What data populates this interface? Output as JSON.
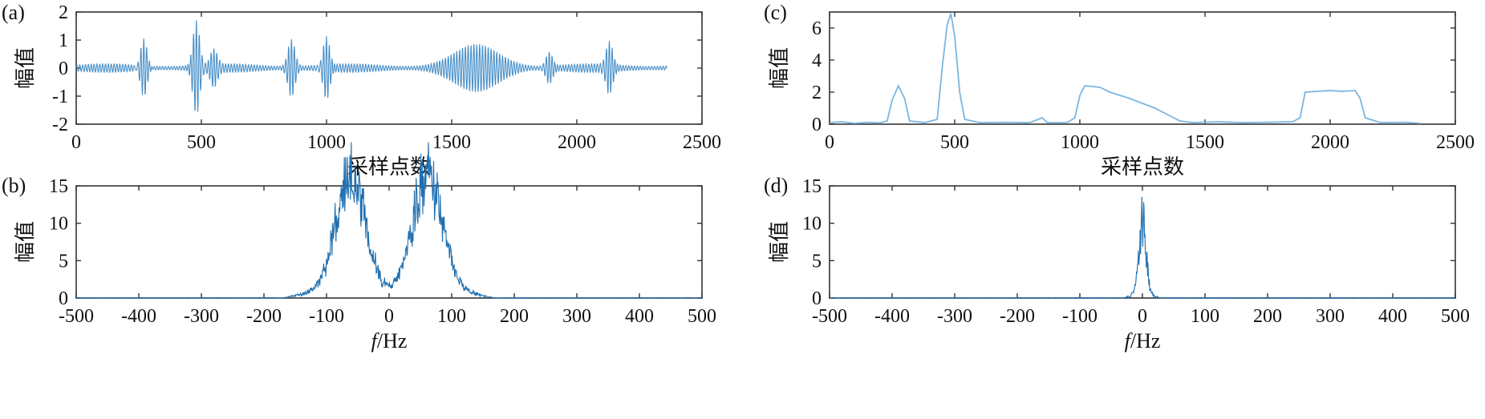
{
  "chart_data": [
    {
      "panel": "(a)",
      "type": "line",
      "ylabel": "幅值",
      "xlabel": "采样点数",
      "xlim": [
        0,
        2500
      ],
      "ylim": [
        -2,
        2
      ],
      "xticks": [
        "0",
        "500",
        "1000",
        "1500",
        "2000",
        "2500"
      ],
      "yticks": [
        "-2",
        "-1",
        "0",
        "1",
        "2"
      ],
      "color": "#4a90c8",
      "series": [
        {
          "description": "oscillating signal, background amplitude ~0.15, transient bursts",
          "baseline_amplitude": 0.15,
          "signal_end": 2360,
          "bursts": [
            {
              "x": 270,
              "peak": 1.2,
              "trough": -1.05
            },
            {
              "x": 480,
              "peak": 1.7,
              "trough": -1.7
            },
            {
              "x": 550,
              "peak": 0.6,
              "trough": -0.6
            },
            {
              "x": 860,
              "peak": 1.15,
              "trough": -0.85
            },
            {
              "x": 1000,
              "peak": 1.2,
              "trough": -1.15
            },
            {
              "x": 1600,
              "peak": 0.85,
              "trough": -0.75
            },
            {
              "x": 1890,
              "peak": 0.55,
              "trough": -0.55
            },
            {
              "x": 2130,
              "peak": 0.9,
              "trough": -0.95
            }
          ]
        }
      ]
    },
    {
      "panel": "(b)",
      "type": "line",
      "ylabel": "幅值",
      "xlabel": "f/Hz",
      "xlim": [
        -500,
        500
      ],
      "ylim": [
        0,
        15
      ],
      "xticks": [
        "-500",
        "-400",
        "-300",
        "-200",
        "-100",
        "0",
        "100",
        "200",
        "300",
        "400",
        "500"
      ],
      "yticks": [
        "0",
        "5",
        "10",
        "15"
      ],
      "color": "#1f6fb0",
      "series": [
        {
          "description": "symmetric spectrum with two lobes",
          "peaks": [
            {
              "x": -55,
              "y": 12
            },
            {
              "x": -70,
              "y": 9.5
            },
            {
              "x": 55,
              "y": 12
            },
            {
              "x": 70,
              "y": 9.5
            }
          ],
          "support": [
            -180,
            180
          ]
        }
      ]
    },
    {
      "panel": "(c)",
      "type": "line",
      "ylabel": "幅值",
      "xlabel": "采样点数",
      "xlim": [
        0,
        2500
      ],
      "ylim": [
        0,
        7
      ],
      "xticks": [
        "0",
        "500",
        "1000",
        "1500",
        "2000",
        "2500"
      ],
      "yticks": [
        "0",
        "2",
        "4",
        "6"
      ],
      "color": "#7ab6e0",
      "series": [
        {
          "description": "envelope of signal (a)",
          "points": [
            [
              0,
              0.1
            ],
            [
              50,
              0.15
            ],
            [
              100,
              0.05
            ],
            [
              150,
              0.12
            ],
            [
              200,
              0.08
            ],
            [
              230,
              0.2
            ],
            [
              250,
              1.5
            ],
            [
              275,
              2.4
            ],
            [
              300,
              1.6
            ],
            [
              320,
              0.2
            ],
            [
              380,
              0.1
            ],
            [
              430,
              0.3
            ],
            [
              450,
              3.5
            ],
            [
              470,
              6.2
            ],
            [
              485,
              6.9
            ],
            [
              500,
              5.5
            ],
            [
              520,
              2.0
            ],
            [
              540,
              0.3
            ],
            [
              600,
              0.1
            ],
            [
              700,
              0.12
            ],
            [
              800,
              0.1
            ],
            [
              850,
              0.4
            ],
            [
              870,
              0.1
            ],
            [
              950,
              0.1
            ],
            [
              980,
              0.4
            ],
            [
              1000,
              1.8
            ],
            [
              1020,
              2.4
            ],
            [
              1080,
              2.3
            ],
            [
              1120,
              2.0
            ],
            [
              1200,
              1.6
            ],
            [
              1250,
              1.3
            ],
            [
              1300,
              1.0
            ],
            [
              1350,
              0.6
            ],
            [
              1400,
              0.2
            ],
            [
              1450,
              0.1
            ],
            [
              1550,
              0.15
            ],
            [
              1650,
              0.1
            ],
            [
              1750,
              0.12
            ],
            [
              1850,
              0.15
            ],
            [
              1880,
              0.4
            ],
            [
              1900,
              2.0
            ],
            [
              1950,
              2.05
            ],
            [
              2000,
              2.1
            ],
            [
              2050,
              2.05
            ],
            [
              2100,
              2.1
            ],
            [
              2120,
              1.6
            ],
            [
              2140,
              0.4
            ],
            [
              2200,
              0.1
            ],
            [
              2300,
              0.12
            ],
            [
              2360,
              0.05
            ]
          ]
        }
      ]
    },
    {
      "panel": "(d)",
      "type": "line",
      "ylabel": "幅值",
      "xlabel": "f/Hz",
      "xlim": [
        -500,
        500
      ],
      "ylim": [
        0,
        15
      ],
      "xticks": [
        "-500",
        "-400",
        "-300",
        "-200",
        "-100",
        "0",
        "100",
        "200",
        "300",
        "400",
        "500"
      ],
      "yticks": [
        "0",
        "5",
        "10",
        "15"
      ],
      "color": "#1f6fb0",
      "series": [
        {
          "description": "envelope spectrum, single narrow peak at 0",
          "peaks": [
            {
              "x": 0,
              "y": 13
            }
          ],
          "support": [
            -30,
            30
          ]
        }
      ]
    }
  ]
}
